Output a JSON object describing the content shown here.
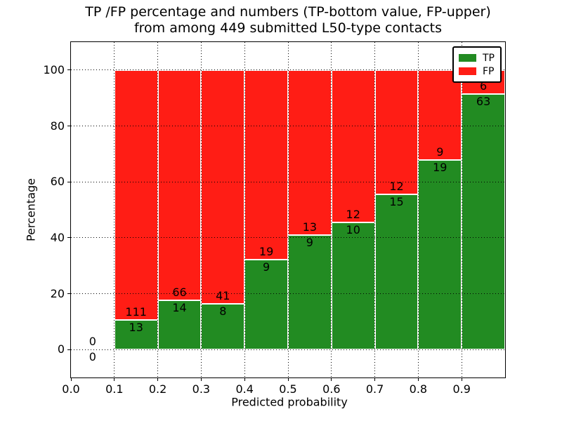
{
  "figure": {
    "title_line1": "TP /FP percentage and numbers (TP-bottom value, FP-upper)",
    "title_line2": "from among 449 submitted L50-type contacts"
  },
  "axes": {
    "xlabel": "Predicted probability",
    "ylabel": "Percentage",
    "xtick_labels": [
      "0.0",
      "0.1",
      "0.2",
      "0.3",
      "0.4",
      "0.5",
      "0.6",
      "0.7",
      "0.8",
      "0.9"
    ],
    "ytick_labels": [
      "0",
      "20",
      "40",
      "60",
      "80",
      "100"
    ]
  },
  "legend": {
    "entries": [
      {
        "label": "TP",
        "color": "#228b22"
      },
      {
        "label": "FP",
        "color": "#ff1d15"
      }
    ]
  },
  "colors": {
    "tp_green": "#228b22",
    "fp_red": "#ff1d15",
    "bar_edge": "#ffffff",
    "grid": "#000000",
    "background": "#ffffff",
    "text": "#000000"
  },
  "chart_data": {
    "type": "bar",
    "stacked": true,
    "normalized_to_percent": true,
    "title": "TP /FP percentage and numbers (TP-bottom value, FP-upper) from among 449 submitted L50-type contacts",
    "xlabel": "Predicted probability",
    "ylabel": "Percentage",
    "xlim": [
      0.0,
      1.0
    ],
    "ylim": [
      -10,
      110
    ],
    "grid": "dotted black on both axes",
    "legend_position": "upper right",
    "total_contacts": 449,
    "bin_edges": [
      0.0,
      0.1,
      0.2,
      0.3,
      0.4,
      0.5,
      0.6,
      0.7,
      0.8,
      0.9,
      1.0
    ],
    "categories": [
      "0.0-0.1",
      "0.1-0.2",
      "0.2-0.3",
      "0.3-0.4",
      "0.4-0.5",
      "0.5-0.6",
      "0.6-0.7",
      "0.7-0.8",
      "0.8-0.9",
      "0.9-1.0"
    ],
    "series": [
      {
        "name": "TP",
        "color": "#228b22",
        "counts": [
          0,
          13,
          14,
          8,
          9,
          9,
          10,
          15,
          19,
          63
        ],
        "percent_heights": [
          0,
          10.5,
          17.5,
          16.3,
          32.1,
          40.9,
          45.5,
          55.6,
          67.9,
          91.3
        ]
      },
      {
        "name": "FP",
        "color": "#ff1d15",
        "counts": [
          0,
          111,
          66,
          41,
          19,
          13,
          12,
          12,
          9,
          6
        ],
        "percent_heights": [
          0,
          89.5,
          82.5,
          83.7,
          67.9,
          59.1,
          54.5,
          44.4,
          32.1,
          8.7
        ]
      }
    ]
  }
}
